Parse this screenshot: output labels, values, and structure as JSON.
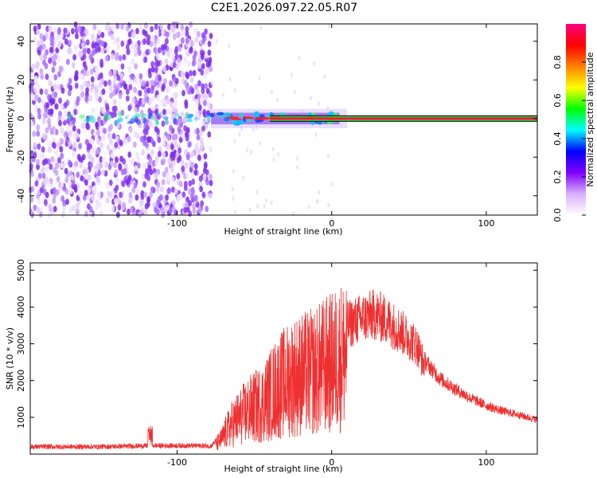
{
  "title": "C2E1.2026.097.22.05.R07",
  "chart_data": [
    {
      "type": "heatmap",
      "name": "spectrogram",
      "xlabel": "Height of straight line (km)",
      "ylabel": "Frequency (Hz)",
      "xlim": [
        -195,
        133
      ],
      "ylim": [
        -50,
        49
      ],
      "xticks": [
        -100,
        0,
        100
      ],
      "xtick_labels": [
        "-100",
        "0",
        "100"
      ],
      "yticks": [
        -40,
        -20,
        0,
        20,
        40
      ],
      "ytick_labels": [
        "-40",
        "-20",
        "0",
        "20",
        "40"
      ],
      "noise_region_x": [
        -195,
        -78
      ],
      "central_line_frequency": 0,
      "colorbar": {
        "label": "Normalized spectral amplitude",
        "range": [
          0,
          1
        ],
        "ticks": [
          0.0,
          0.2,
          0.4,
          0.6,
          0.8
        ],
        "tick_labels": [
          "0.0",
          "0.2",
          "0.4",
          "0.6",
          "0.8"
        ],
        "colors": [
          "#ffffff",
          "#d8b0ff",
          "#8000ff",
          "#0000ff",
          "#00ffff",
          "#00ff00",
          "#ffff00",
          "#ff8000",
          "#ff0000",
          "#ff0080"
        ]
      }
    },
    {
      "type": "line",
      "name": "snr",
      "xlabel": "Height of straight line (km)",
      "ylabel": "SNR (10 * v/v)",
      "xlim": [
        -195,
        133
      ],
      "ylim": [
        0,
        5200
      ],
      "xticks": [
        -100,
        0,
        100
      ],
      "xtick_labels": [
        "-100",
        "0",
        "100"
      ],
      "yticks": [
        1000,
        2000,
        3000,
        4000,
        5000
      ],
      "ytick_labels": [
        "1000",
        "2000",
        "3000",
        "4000",
        "5000"
      ],
      "color": "#ee3030",
      "series": [
        {
          "name": "SNR envelope",
          "x": [
            -195,
            -150,
            -115,
            -90,
            -78,
            -72,
            -65,
            -55,
            -45,
            -35,
            -25,
            -18,
            -10,
            -5,
            0,
            10,
            20,
            28,
            35,
            45,
            55,
            60,
            70,
            80,
            90,
            100,
            110,
            120,
            133
          ],
          "values": [
            200,
            200,
            230,
            230,
            220,
            500,
            1100,
            1600,
            1900,
            2500,
            2900,
            3000,
            3100,
            3300,
            3400,
            3800,
            4000,
            4100,
            3950,
            3600,
            3200,
            2600,
            2100,
            1800,
            1550,
            1350,
            1200,
            1100,
            950
          ]
        }
      ]
    }
  ]
}
